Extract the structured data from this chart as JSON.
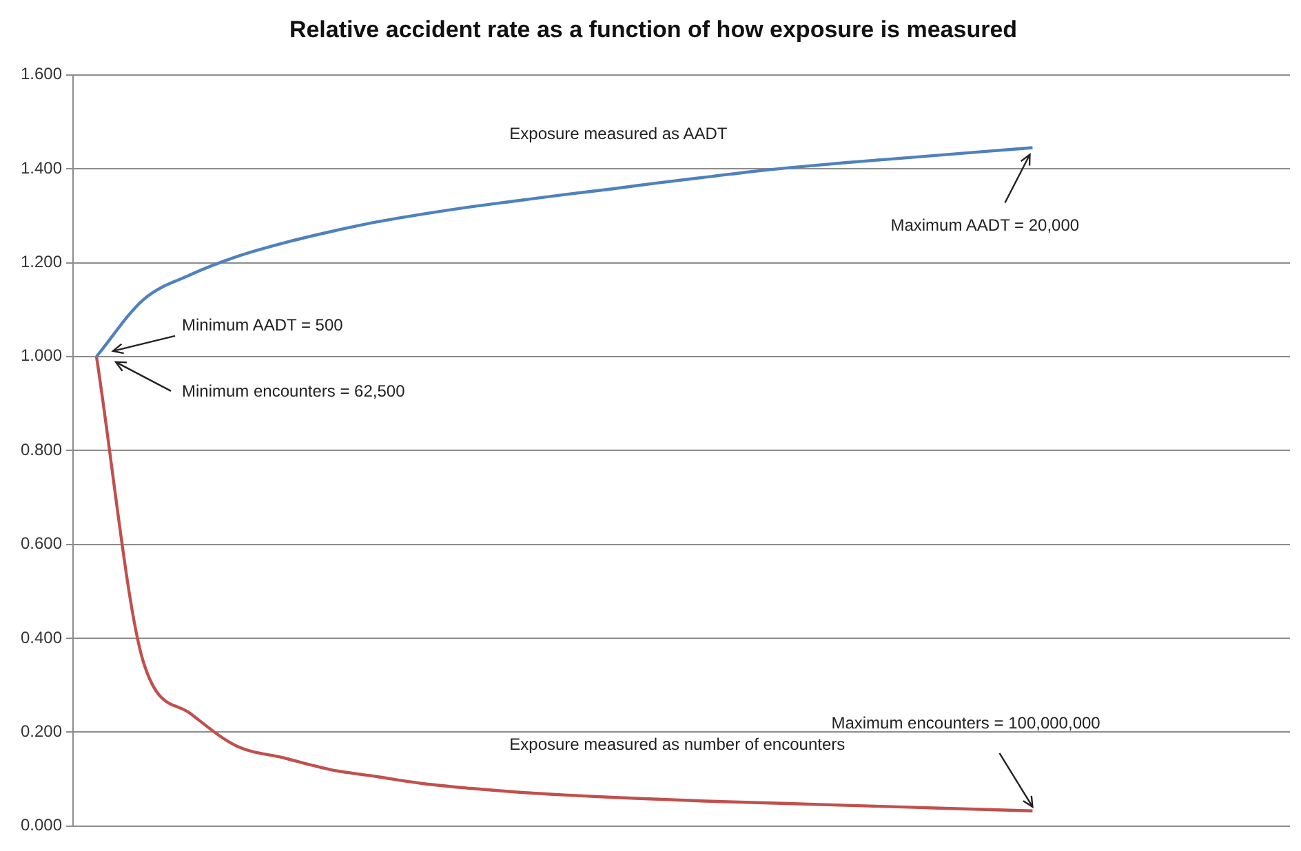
{
  "chart_data": {
    "type": "line",
    "title": "Relative accident rate as a function of how exposure is measured",
    "categories": [
      null,
      null,
      null,
      null,
      null,
      null,
      null,
      null,
      null,
      null,
      null,
      null,
      null,
      null,
      null,
      null,
      null,
      null,
      null,
      null,
      null,
      null,
      null,
      null,
      null,
      null
    ],
    "series": [
      {
        "name": "Exposure measured as AADT",
        "color": "#4f81bd",
        "values": [
          1.0,
          1.121,
          1.174,
          1.213,
          1.242,
          1.266,
          1.287,
          1.304,
          1.319,
          1.332,
          1.345,
          1.357,
          1.37,
          1.382,
          1.394,
          1.404,
          1.413,
          1.421,
          1.429,
          1.437,
          1.445,
          null,
          null,
          null,
          null,
          null
        ]
      },
      {
        "name": "Exposure measured as number of encounters",
        "color": "#c0504d",
        "values": [
          1.0,
          0.35,
          0.24,
          0.17,
          0.145,
          0.12,
          0.105,
          0.09,
          0.08,
          0.072,
          0.066,
          0.061,
          0.057,
          0.053,
          0.05,
          0.047,
          0.044,
          0.041,
          0.038,
          0.035,
          0.032,
          null,
          null,
          null,
          null,
          null
        ]
      }
    ],
    "ylim": [
      0,
      1.6
    ],
    "yticks": [
      {
        "value": 0,
        "label": "0.000"
      },
      {
        "value": 0.2,
        "label": "0.200"
      },
      {
        "value": 0.4,
        "label": "0.400"
      },
      {
        "value": 0.6,
        "label": "0.600"
      },
      {
        "value": 0.8,
        "label": "0.800"
      },
      {
        "value": 1.0,
        "label": "1.000"
      },
      {
        "value": 1.2,
        "label": "1.200"
      },
      {
        "value": 1.4,
        "label": "1.400"
      },
      {
        "value": 1.6,
        "label": "1.600"
      }
    ],
    "grid": "y",
    "legend": false,
    "marker": "none",
    "line_style": "solid",
    "annotations": [
      "Minimum AADT = 500",
      "Minimum encounters = 62,500",
      "Maximum AADT = 20,000",
      "Maximum encounters = 100,000,000"
    ]
  }
}
